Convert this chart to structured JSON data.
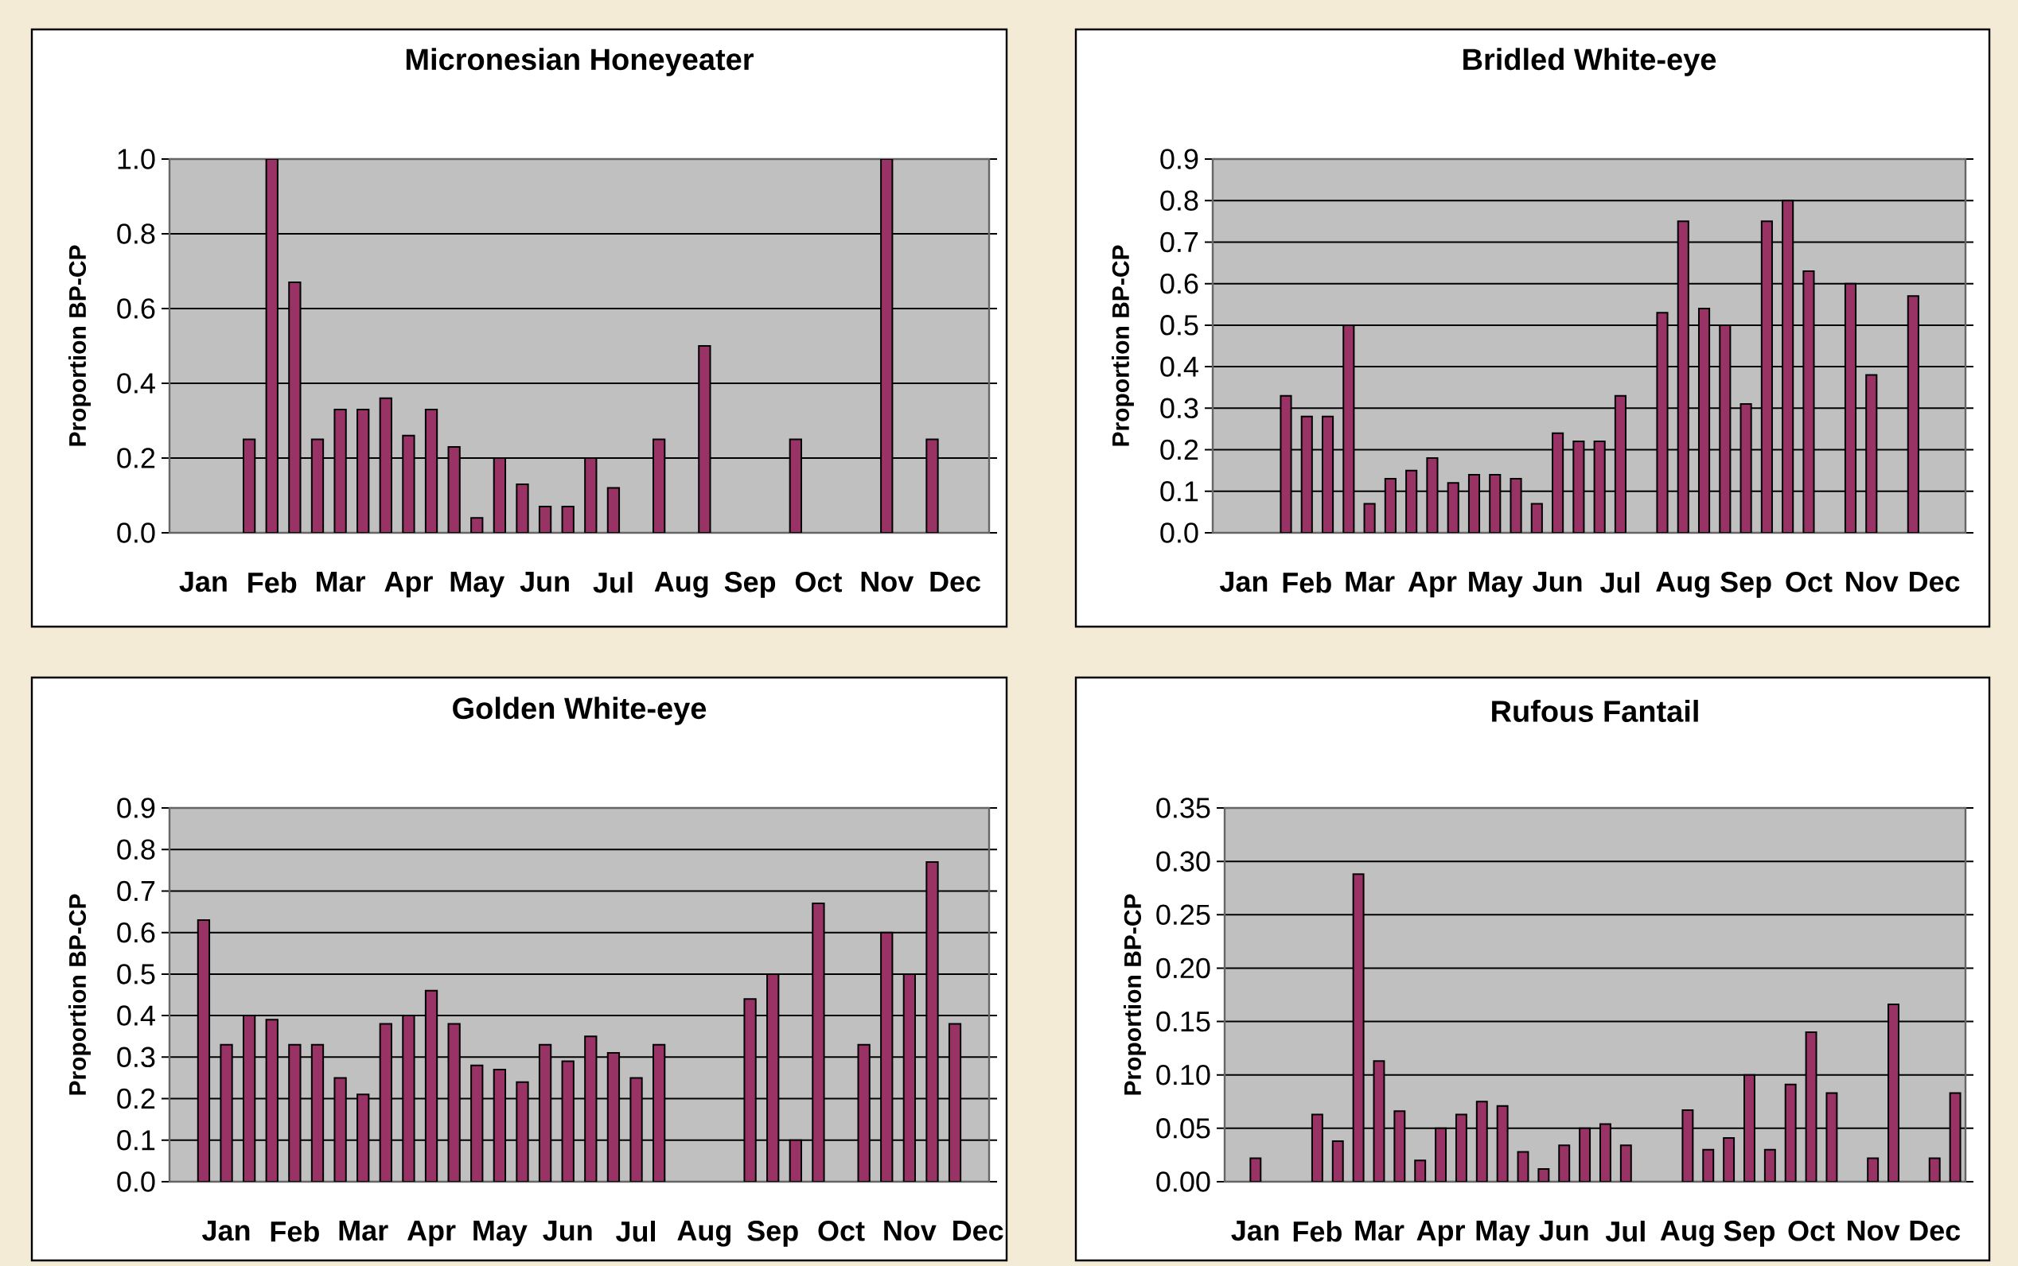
{
  "chart_data": [
    {
      "type": "bar",
      "title": "Micronesian Honeyeater",
      "ylabel": "Proportion BP-CP",
      "color": "#993366",
      "grid": "y",
      "categories": [
        null,
        "Jan",
        null,
        null,
        "Feb",
        null,
        null,
        "Mar",
        null,
        null,
        "Apr",
        null,
        null,
        "May",
        null,
        null,
        "Jun",
        null,
        null,
        "Jul",
        null,
        null,
        "Aug",
        null,
        null,
        "Sep",
        null,
        null,
        "Oct",
        null,
        null,
        "Nov",
        null,
        null,
        "Dec",
        null
      ],
      "values": [
        null,
        null,
        null,
        0.25,
        1.0,
        0.67,
        0.25,
        0.33,
        0.33,
        0.36,
        0.26,
        0.33,
        0.23,
        0.04,
        0.2,
        0.13,
        0.07,
        0.07,
        0.2,
        0.12,
        null,
        0.25,
        null,
        0.5,
        null,
        null,
        null,
        0.25,
        null,
        null,
        null,
        1.0,
        null,
        0.25,
        null,
        null
      ],
      "ylim": [
        0,
        1
      ],
      "yticks": [
        {
          "value": 0,
          "label": "0.0"
        },
        0.2,
        0.4,
        0.6,
        0.8,
        {
          "value": 1,
          "label": "1.0"
        }
      ]
    },
    {
      "type": "bar",
      "title": "Bridled White-eye",
      "ylabel": "Proportion BP-CP",
      "color": "#993366",
      "grid": "y",
      "categories": [
        null,
        "Jan",
        null,
        null,
        "Feb",
        null,
        null,
        "Mar",
        null,
        null,
        "Apr",
        null,
        null,
        "May",
        null,
        null,
        "Jun",
        null,
        null,
        "Jul",
        null,
        null,
        "Aug",
        null,
        null,
        "Sep",
        null,
        null,
        "Oct",
        null,
        null,
        "Nov",
        null,
        null,
        "Dec",
        null
      ],
      "values": [
        null,
        null,
        null,
        0.33,
        0.28,
        0.28,
        0.5,
        0.07,
        0.13,
        0.15,
        0.18,
        0.12,
        0.14,
        0.14,
        0.13,
        0.07,
        0.24,
        0.22,
        0.22,
        0.33,
        null,
        0.53,
        0.75,
        0.54,
        0.5,
        0.31,
        0.75,
        0.8,
        0.63,
        null,
        0.6,
        0.38,
        null,
        0.57,
        null,
        null
      ],
      "ylim": [
        0,
        0.9
      ],
      "yticks": [
        {
          "value": 0,
          "label": "0.0"
        },
        0.1,
        0.2,
        0.3,
        0.4,
        0.5,
        0.6,
        0.7,
        0.8,
        0.9
      ]
    },
    {
      "type": "bar",
      "title": "Golden White-eye",
      "ylabel": "Proportion BP-CP",
      "color": "#993366",
      "grid": "y",
      "categories": [
        null,
        null,
        "Jan",
        null,
        null,
        "Feb",
        null,
        null,
        "Mar",
        null,
        null,
        "Apr",
        null,
        null,
        "May",
        null,
        null,
        "Jun",
        null,
        null,
        "Jul",
        null,
        null,
        "Aug",
        null,
        null,
        "Sep",
        null,
        null,
        "Oct",
        null,
        null,
        "Nov",
        null,
        null,
        "Dec"
      ],
      "values": [
        null,
        0.63,
        0.33,
        0.4,
        0.39,
        0.33,
        0.33,
        0.25,
        0.21,
        0.38,
        0.4,
        0.46,
        0.38,
        0.28,
        0.27,
        0.24,
        0.33,
        0.29,
        0.35,
        0.31,
        0.25,
        0.33,
        null,
        null,
        null,
        0.44,
        0.5,
        0.1,
        0.67,
        null,
        0.33,
        0.6,
        0.5,
        0.77,
        0.38,
        null
      ],
      "ylim": [
        0,
        0.9
      ],
      "yticks": [
        {
          "value": 0,
          "label": "0.0"
        },
        0.1,
        0.2,
        0.3,
        0.4,
        0.5,
        0.6,
        0.7,
        0.8,
        0.9
      ]
    },
    {
      "type": "bar",
      "title": "Rufous Fantail",
      "ylabel": "Proportion BP-CP",
      "color": "#993366",
      "grid": "y",
      "categories": [
        null,
        "Jan",
        null,
        null,
        "Feb",
        null,
        null,
        "Mar",
        null,
        null,
        "Apr",
        null,
        null,
        "May",
        null,
        null,
        "Jun",
        null,
        null,
        "Jul",
        null,
        null,
        "Aug",
        null,
        null,
        "Sep",
        null,
        null,
        "Oct",
        null,
        null,
        "Nov",
        null,
        null,
        "Dec",
        null
      ],
      "values": [
        null,
        0.022,
        null,
        null,
        0.063,
        0.038,
        0.288,
        0.113,
        0.066,
        0.02,
        0.05,
        0.063,
        0.075,
        0.071,
        0.028,
        0.012,
        0.034,
        0.05,
        0.054,
        0.034,
        null,
        null,
        0.067,
        0.03,
        0.041,
        0.1,
        0.03,
        0.091,
        0.14,
        0.083,
        null,
        0.022,
        0.166,
        null,
        0.022,
        0.083
      ],
      "ylim": [
        0,
        0.35
      ],
      "yticks": [
        {
          "value": 0,
          "label": "0.00"
        },
        {
          "value": 0.05,
          "label": "0.05"
        },
        {
          "value": 0.1,
          "label": "0.10"
        },
        {
          "value": 0.15,
          "label": "0.15"
        },
        {
          "value": 0.2,
          "label": "0.20"
        },
        {
          "value": 0.25,
          "label": "0.25"
        },
        {
          "value": 0.3,
          "label": "0.30"
        },
        {
          "value": 0.35,
          "label": "0.35"
        }
      ]
    }
  ]
}
